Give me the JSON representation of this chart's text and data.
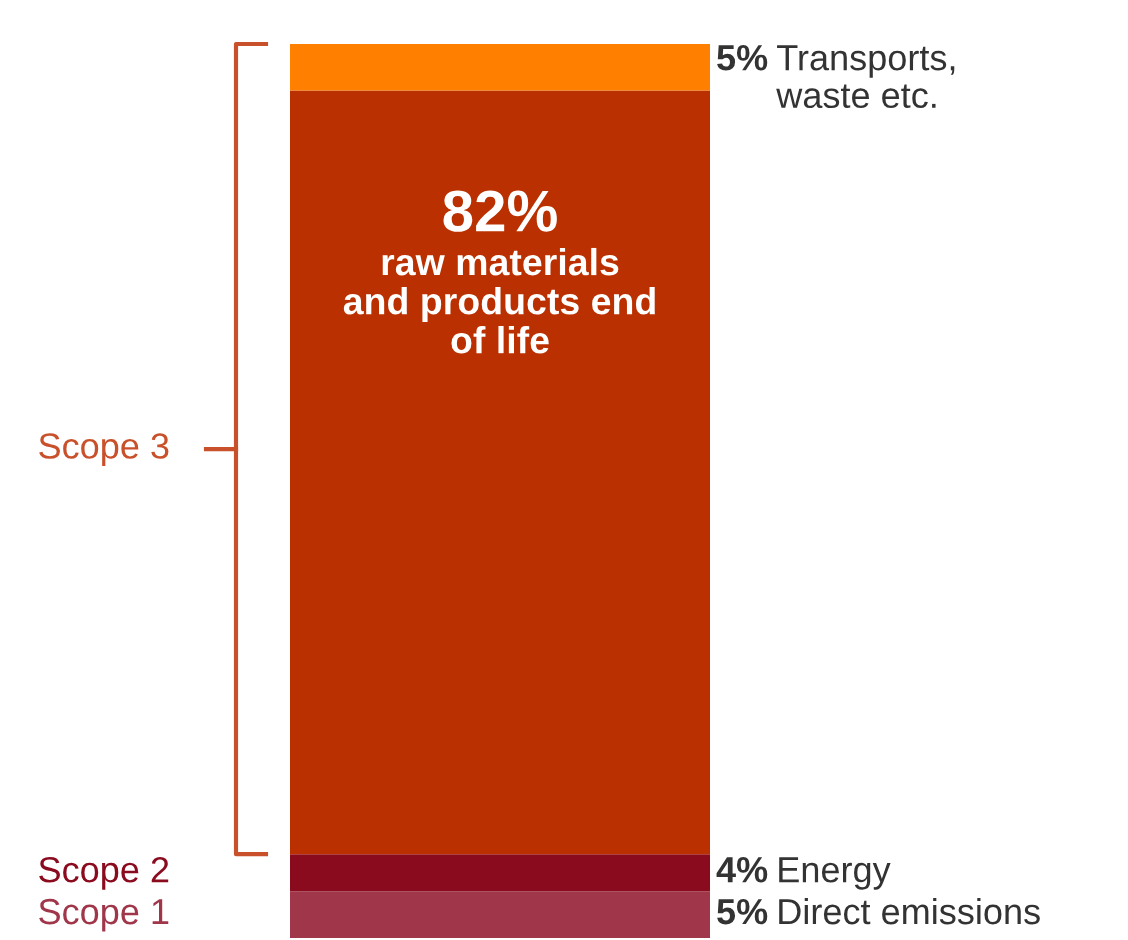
{
  "chart_data": {
    "type": "bar",
    "stacked": true,
    "categories": [
      null
    ],
    "series": [
      {
        "name": "Direct emissions",
        "color": "#a0364a",
        "values": [
          5
        ],
        "value_labels": [
          "5%"
        ]
      },
      {
        "name": "Energy",
        "color": "#8a0a1e",
        "values": [
          4
        ],
        "value_labels": [
          "4%"
        ]
      },
      {
        "name": "raw materials\nand products end\nof life",
        "color": "#bb3000",
        "values": [
          82
        ],
        "value_labels": [
          "82%"
        ]
      },
      {
        "name": "Transports,\nwaste etc.",
        "color": "#ff8000",
        "values": [
          5
        ],
        "value_labels": [
          "5%"
        ]
      }
    ],
    "annotations": [
      "Scope 3",
      "Scope 2",
      "Scope 1"
    ],
    "legend": false,
    "grid": false
  }
}
